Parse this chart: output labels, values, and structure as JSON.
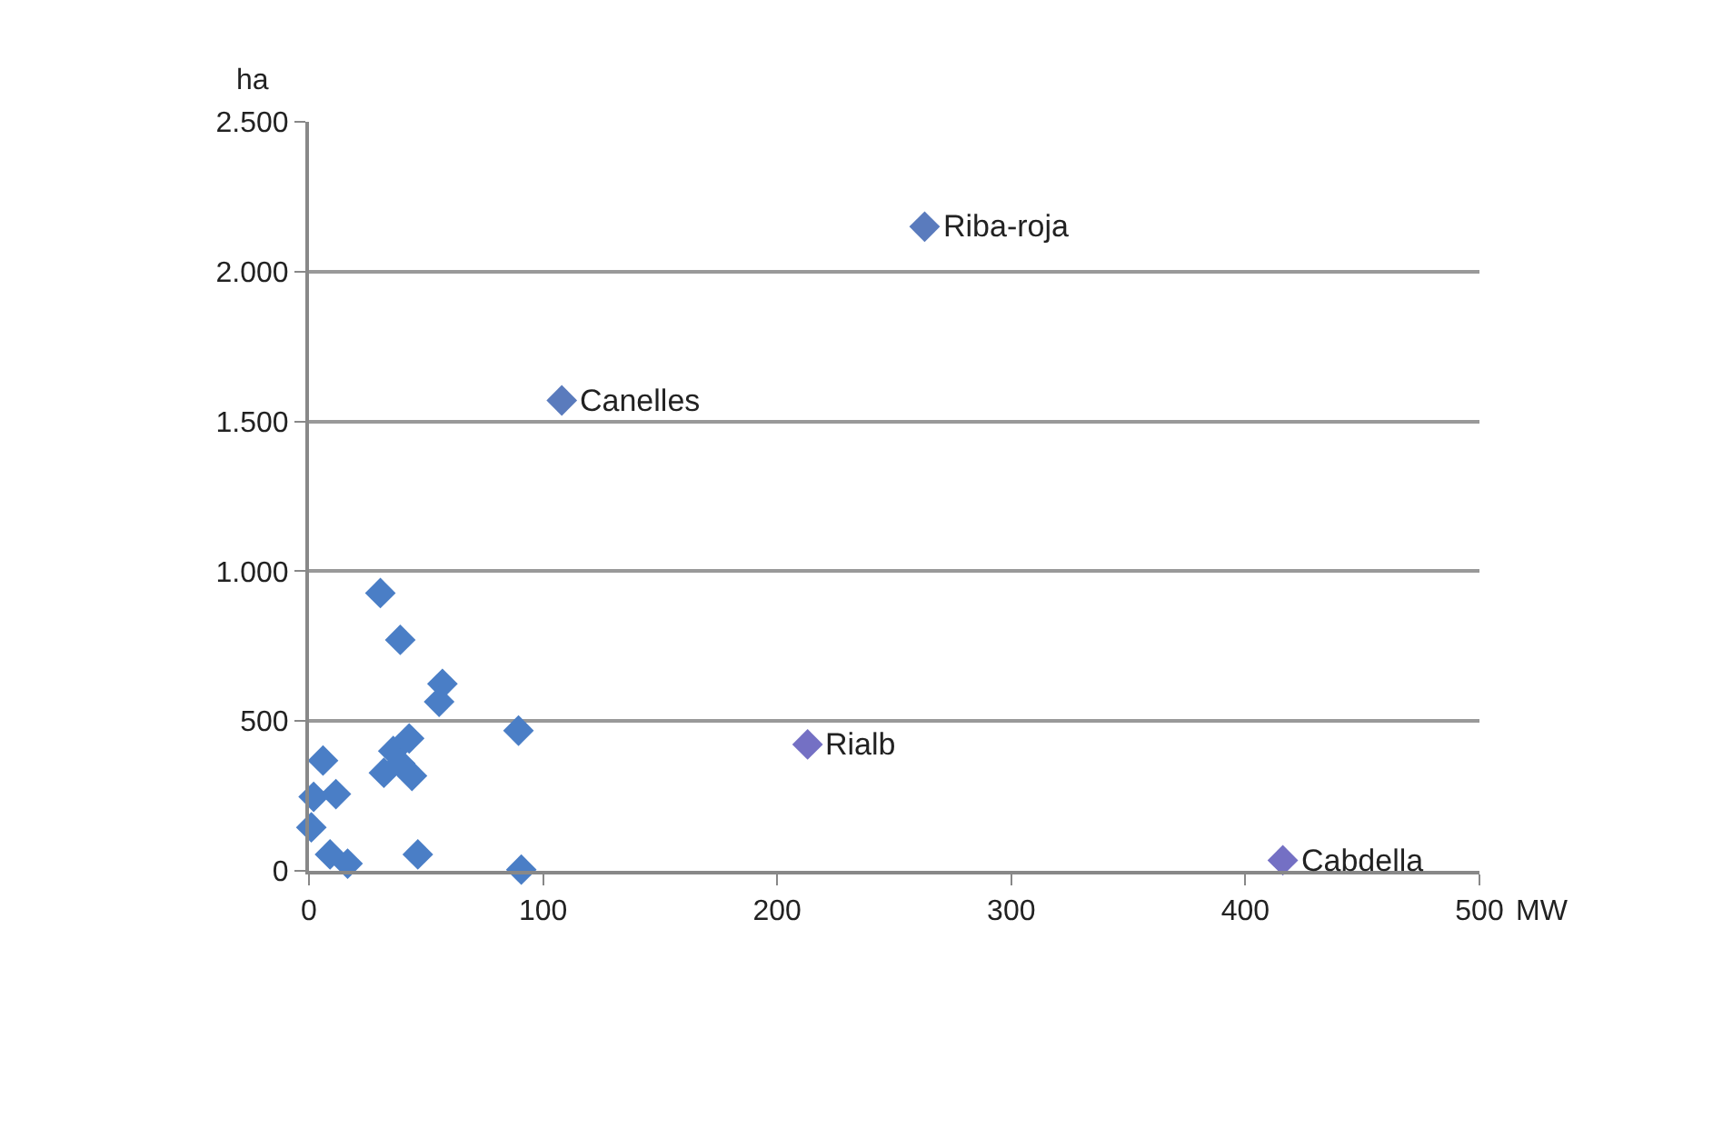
{
  "chart_data": {
    "type": "scatter",
    "xlabel": "MW",
    "ylabel": "ha",
    "marker": "diamond",
    "grid": "y",
    "xlim": [
      0,
      500
    ],
    "xticks": [
      0,
      100,
      200,
      300,
      400,
      500
    ],
    "ylim": [
      0,
      2500
    ],
    "yticks": [
      0,
      {
        "value": 500,
        "label": "500"
      },
      {
        "value": 1000,
        "label": "1.000"
      },
      {
        "value": 1500,
        "label": "1.500"
      },
      {
        "value": 2000,
        "label": "2.000"
      },
      {
        "value": 2500,
        "label": "2.500"
      }
    ],
    "series": [
      {
        "color": "#4a7ec6",
        "x": [
          30.5,
          39,
          57,
          55.6,
          89.5,
          42.8,
          36,
          32,
          44,
          39,
          6,
          2,
          11.5,
          1,
          9,
          16.5,
          46.5,
          90.7
        ],
        "values": [
          927,
          771,
          624,
          564,
          468,
          442,
          400,
          327,
          317,
          358,
          368,
          247,
          256,
          145,
          55,
          24,
          55,
          4
        ]
      },
      {
        "color": "#5a7bbd",
        "x": [
          263,
          108
        ],
        "values": [
          2150,
          1570
        ]
      },
      {
        "color": "#7470c4",
        "x": [
          213,
          416
        ],
        "values": [
          422,
          35
        ]
      }
    ],
    "annotations": [
      {
        "text": "Riba-roja",
        "x": 263,
        "y": 2150
      },
      {
        "text": "Canelles",
        "x": 108,
        "y": 1570
      },
      {
        "text": "Rialb",
        "x": 213,
        "y": 422
      },
      {
        "text": "Cabdella",
        "x": 416,
        "y": 35
      }
    ]
  }
}
